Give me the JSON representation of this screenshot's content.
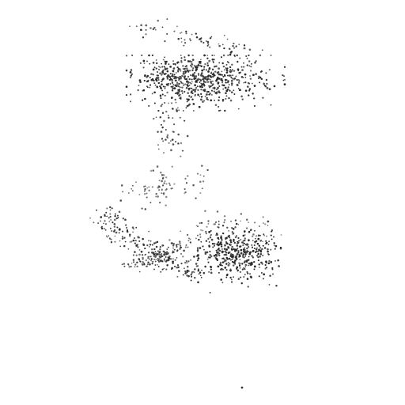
{
  "scene": {
    "description_visible_text": "",
    "background_color": "#ffffff",
    "dot_color": "#2b2b2b",
    "dot_radius_hint": "tiny",
    "notes": ""
  },
  "point_clusters": [
    {
      "name": "upper-cloud-main",
      "count": 650
    },
    {
      "name": "upper-cloud-tail",
      "count": 120
    },
    {
      "name": "middle-tail-drift",
      "count": 80
    },
    {
      "name": "lower-band",
      "count": 420
    },
    {
      "name": "lower-dense-right",
      "count": 420
    },
    {
      "name": "stray-point",
      "count": 1
    }
  ]
}
